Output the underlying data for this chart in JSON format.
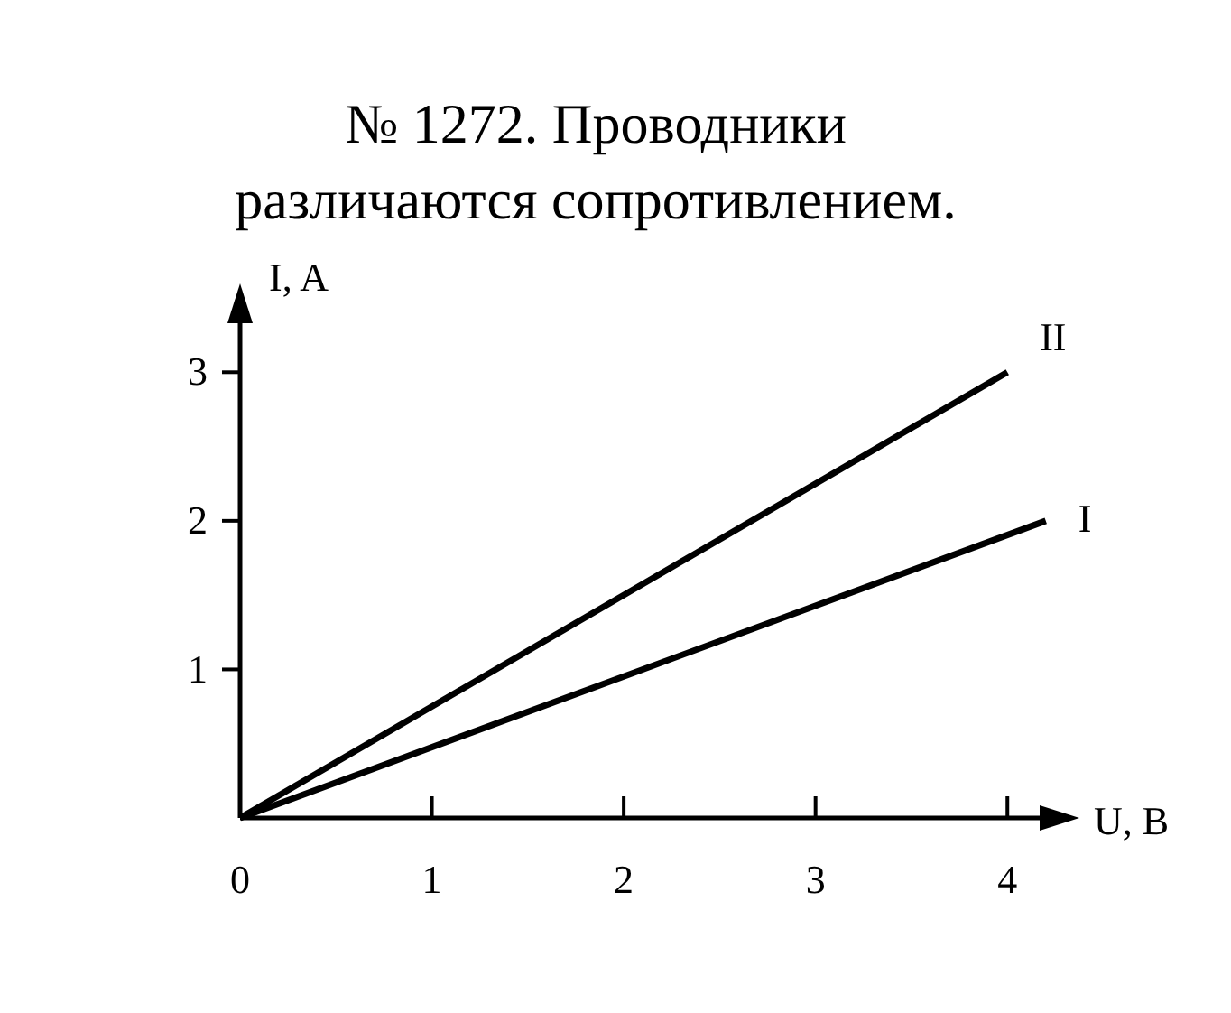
{
  "chart_data": {
    "type": "line",
    "title": "№ 1272. Проводники различаются сопротивлением.",
    "xlabel": "U, B",
    "ylabel": "I, A",
    "xlim": [
      0,
      4.3
    ],
    "ylim": [
      0,
      3.5
    ],
    "xticks": [
      0,
      1,
      2,
      3,
      4
    ],
    "yticks": [
      1,
      2,
      3
    ],
    "marker": "none",
    "grid": false,
    "series": [
      {
        "name": "II",
        "color": "#000000",
        "x": [
          0,
          4
        ],
        "values": [
          0,
          3
        ]
      },
      {
        "name": "I",
        "color": "#000000",
        "x": [
          0,
          4.2
        ],
        "values": [
          0,
          2
        ]
      }
    ]
  }
}
